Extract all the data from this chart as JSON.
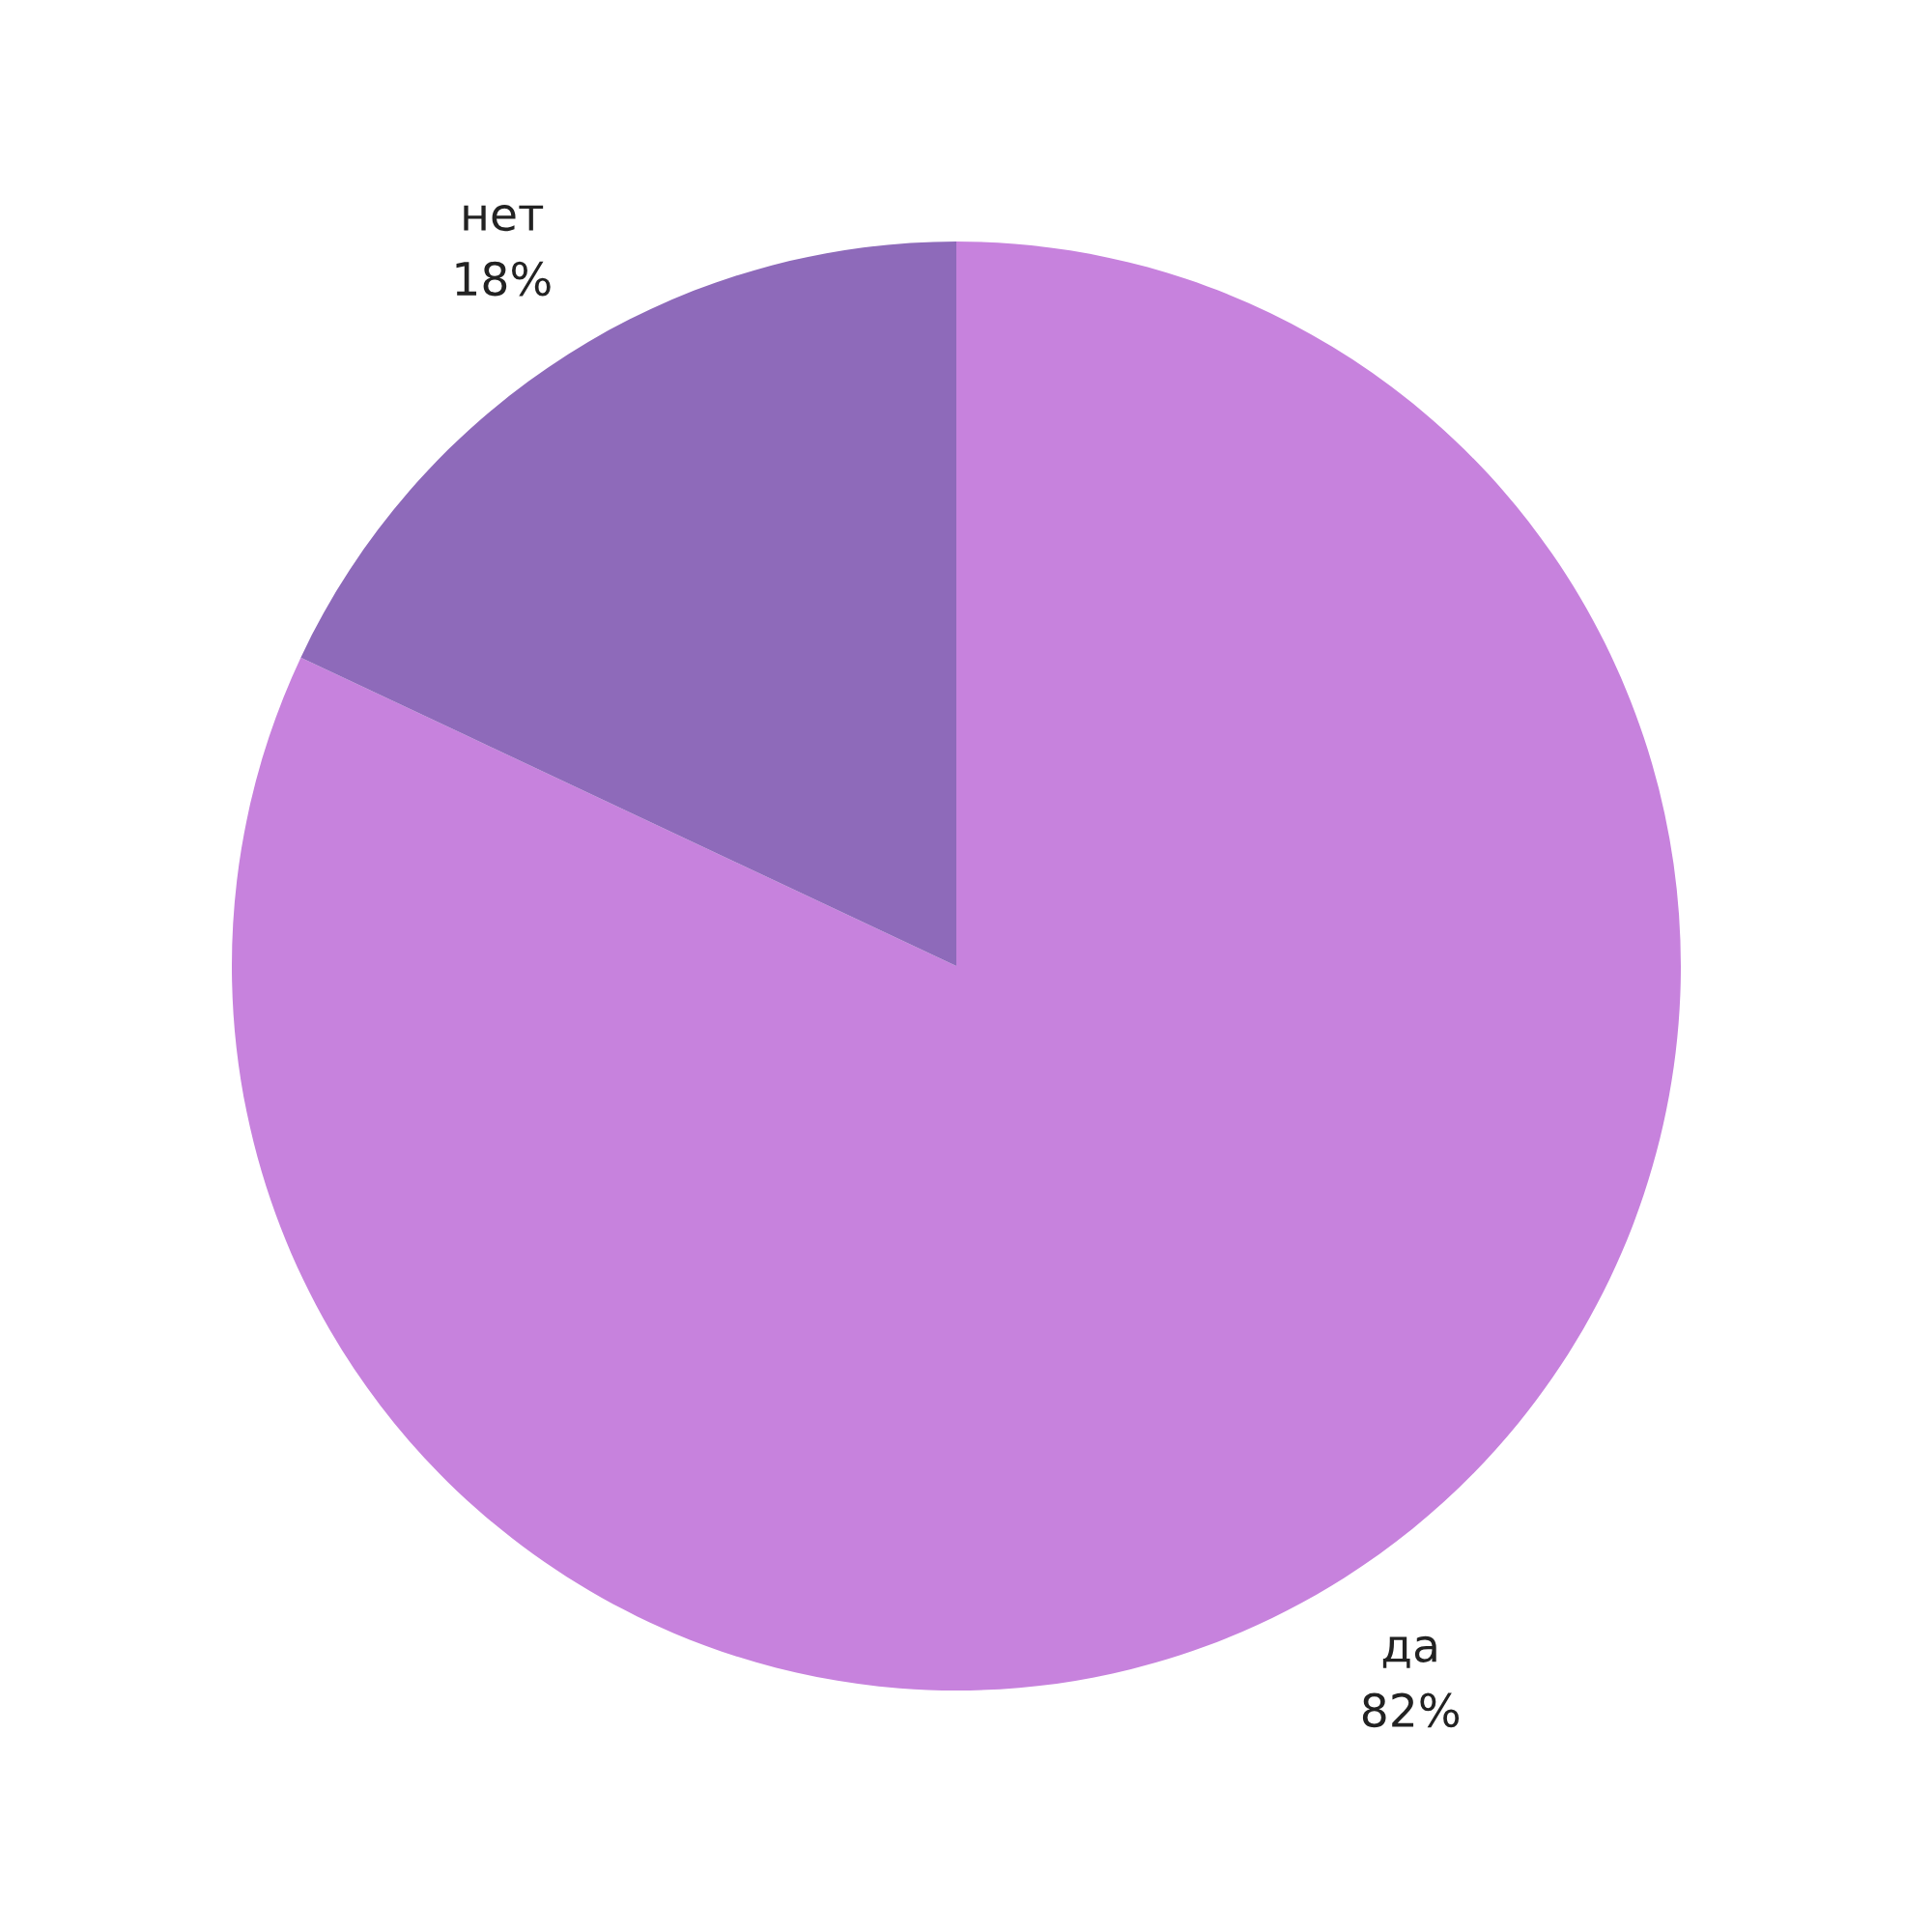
{
  "chart_data": {
    "type": "pie",
    "categories": [
      "да",
      "нет"
    ],
    "values": [
      82,
      18
    ],
    "colors": [
      "#c782dd",
      "#8e6aba"
    ],
    "value_labels": [
      "82%",
      "18%"
    ]
  }
}
